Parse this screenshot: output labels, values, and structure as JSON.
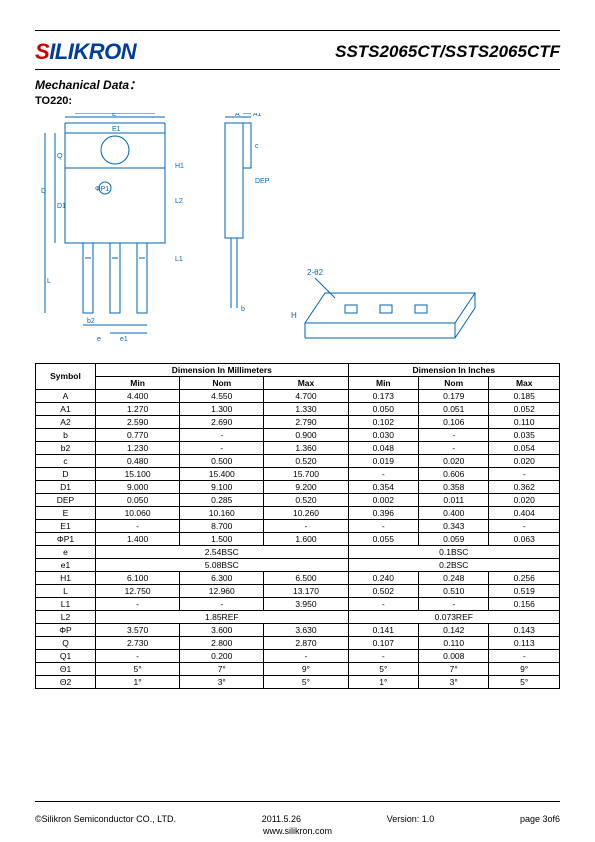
{
  "header": {
    "logo_s": "S",
    "logo_rest": "ILIKRON",
    "part_number": "SSTS2065CT/SSTS2065CTF"
  },
  "section": {
    "title": "Mechanical Data：",
    "package": "TO220:"
  },
  "table": {
    "symbol_header": "Symbol",
    "mm_header": "Dimension In Millimeters",
    "in_header": "Dimension In Inches",
    "min": "Min",
    "nom": "Nom",
    "max": "Max",
    "rows": [
      {
        "sym": "A",
        "mm": [
          "4.400",
          "4.550",
          "4.700"
        ],
        "in": [
          "0.173",
          "0.179",
          "0.185"
        ]
      },
      {
        "sym": "A1",
        "mm": [
          "1.270",
          "1.300",
          "1.330"
        ],
        "in": [
          "0.050",
          "0.051",
          "0.052"
        ]
      },
      {
        "sym": "A2",
        "mm": [
          "2.590",
          "2.690",
          "2.790"
        ],
        "in": [
          "0.102",
          "0.106",
          "0.110"
        ]
      },
      {
        "sym": "b",
        "mm": [
          "0.770",
          "-",
          "0.900"
        ],
        "in": [
          "0.030",
          "-",
          "0.035"
        ]
      },
      {
        "sym": "b2",
        "mm": [
          "1.230",
          "-",
          "1.360"
        ],
        "in": [
          "0.048",
          "-",
          "0.054"
        ]
      },
      {
        "sym": "c",
        "mm": [
          "0.480",
          "0.500",
          "0.520"
        ],
        "in": [
          "0.019",
          "0.020",
          "0.020"
        ]
      },
      {
        "sym": "D",
        "mm": [
          "15.100",
          "15.400",
          "15.700"
        ],
        "in": [
          "-",
          "0.606",
          "-"
        ]
      },
      {
        "sym": "D1",
        "mm": [
          "9.000",
          "9.100",
          "9.200"
        ],
        "in": [
          "0.354",
          "0.358",
          "0.362"
        ]
      },
      {
        "sym": "DEP",
        "mm": [
          "0.050",
          "0.285",
          "0.520"
        ],
        "in": [
          "0.002",
          "0.011",
          "0.020"
        ]
      },
      {
        "sym": "E",
        "mm": [
          "10.060",
          "10.160",
          "10.260"
        ],
        "in": [
          "0.396",
          "0.400",
          "0.404"
        ]
      },
      {
        "sym": "E1",
        "mm": [
          "-",
          "8.700",
          "-"
        ],
        "in": [
          "-",
          "0.343",
          "-"
        ]
      },
      {
        "sym": "ΦP1",
        "mm": [
          "1.400",
          "1.500",
          "1.600"
        ],
        "in": [
          "0.055",
          "0.059",
          "0.063"
        ]
      },
      {
        "sym": "e",
        "mm_span": "2.54BSC",
        "in_span": "0.1BSC"
      },
      {
        "sym": "e1",
        "mm_span": "5.08BSC",
        "in_span": "0.2BSC"
      },
      {
        "sym": "H1",
        "mm": [
          "6.100",
          "6.300",
          "6.500"
        ],
        "in": [
          "0.240",
          "0.248",
          "0.256"
        ]
      },
      {
        "sym": "L",
        "mm": [
          "12.750",
          "12.960",
          "13.170"
        ],
        "in": [
          "0.502",
          "0.510",
          "0.519"
        ]
      },
      {
        "sym": "L1",
        "mm": [
          "-",
          "-",
          "3.950"
        ],
        "in": [
          "-",
          "-",
          "0.156"
        ]
      },
      {
        "sym": "L2",
        "mm_span": "1.85REF",
        "in_span": "0.073REF"
      },
      {
        "sym": "ΦP",
        "mm": [
          "3.570",
          "3.600",
          "3.630"
        ],
        "in": [
          "0.141",
          "0.142",
          "0.143"
        ]
      },
      {
        "sym": "Q",
        "mm": [
          "2.730",
          "2.800",
          "2.870"
        ],
        "in": [
          "0.107",
          "0.110",
          "0.113"
        ]
      },
      {
        "sym": "Q1",
        "mm": [
          "-",
          "0.200",
          "-"
        ],
        "in": [
          "-",
          "0.008",
          "-"
        ]
      },
      {
        "sym": "Θ1",
        "mm": [
          "5°",
          "7°",
          "9°"
        ],
        "in": [
          "5°",
          "7°",
          "9°"
        ]
      },
      {
        "sym": "Θ2",
        "mm": [
          "1°",
          "3°",
          "5°"
        ],
        "in": [
          "1°",
          "3°",
          "5°"
        ]
      }
    ]
  },
  "footer": {
    "copyright": "©Silikron Semiconductor CO., LTD.",
    "date": "2011.5.26",
    "version": "Version: 1.0",
    "page": "page    3of6",
    "url": "www.silikron.com"
  },
  "colors": {
    "line": "#0066b3",
    "logo_red": "#c00",
    "logo_blue": "#003d99"
  }
}
